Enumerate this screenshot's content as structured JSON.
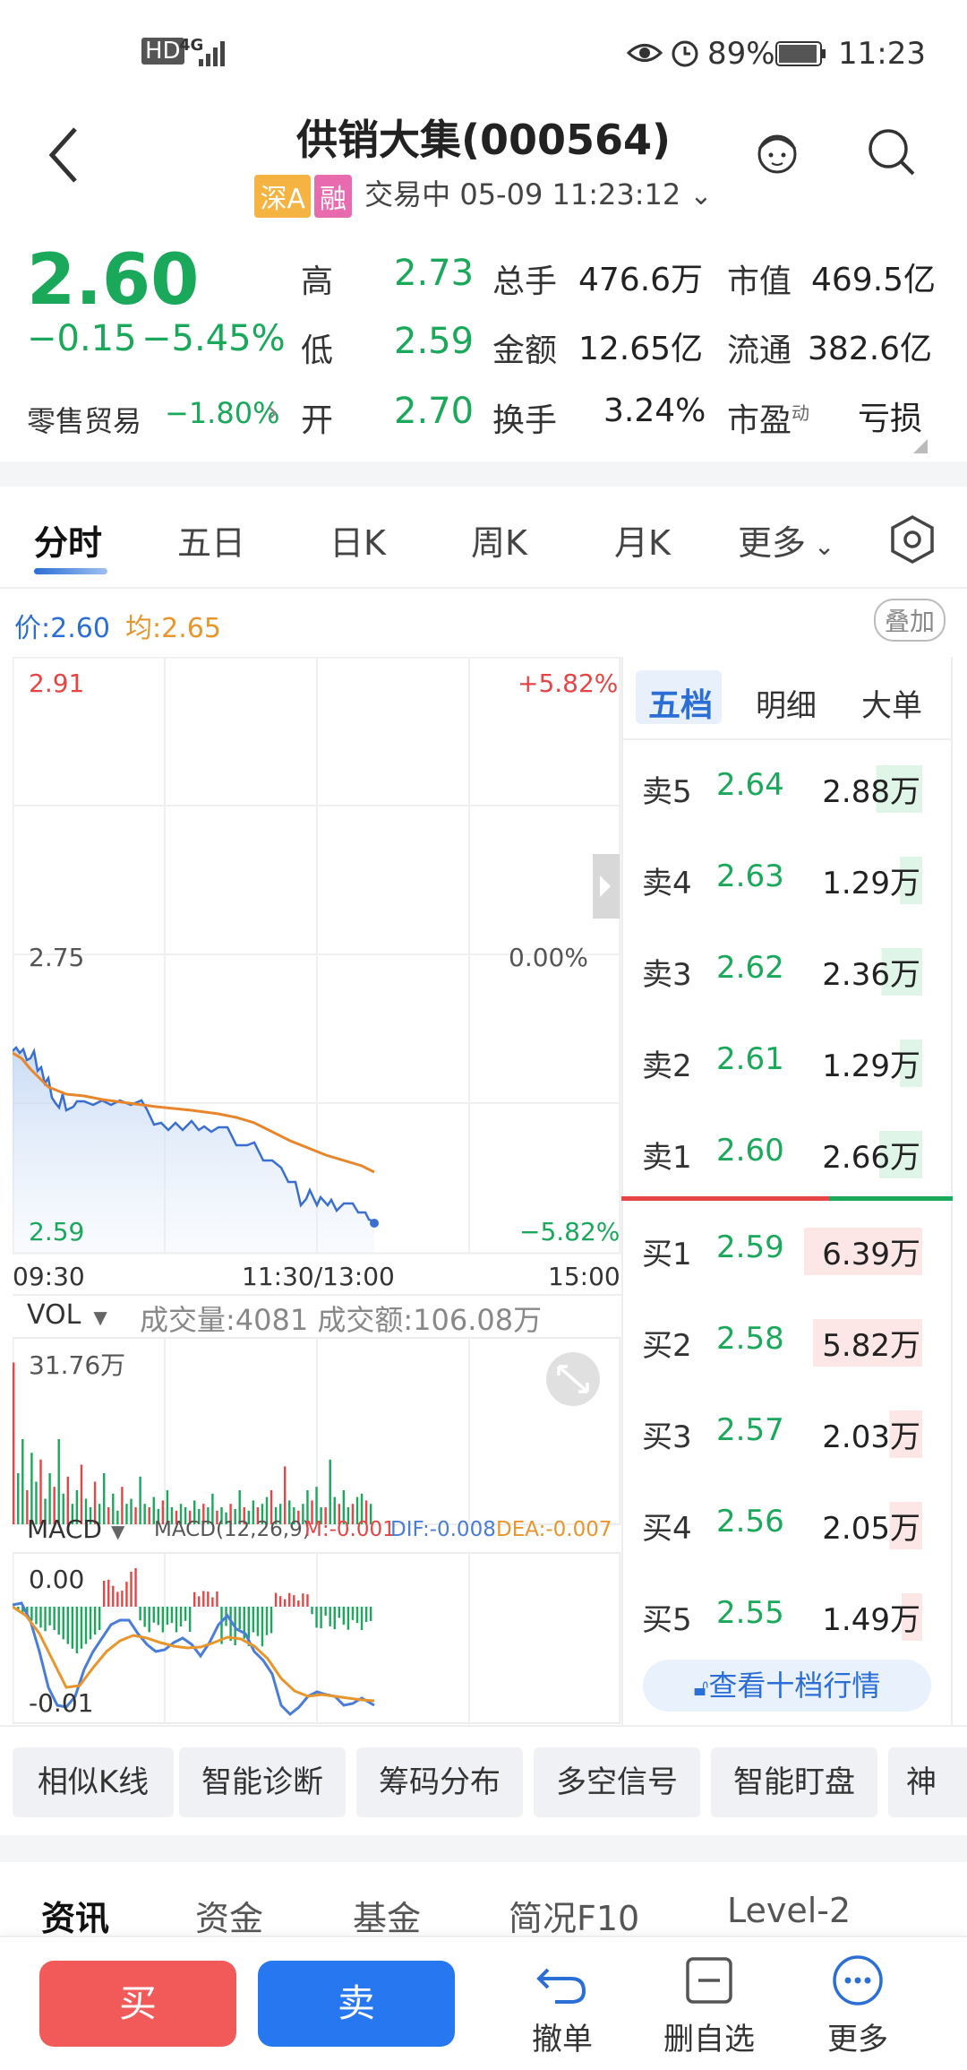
{
  "status_bar": {
    "hd": "HD",
    "net": "4G",
    "battery": "89%",
    "time": "11:23"
  },
  "header": {
    "title": "供销大集(000564)",
    "tag_market": "深A",
    "tag_margin": "融",
    "trading": "交易中 05-09 11:23:12"
  },
  "quote": {
    "price": "2.60",
    "change": "−0.15",
    "change_pct": "−5.45%",
    "sector": "零售贸易",
    "sector_pct": "−1.80%",
    "high_lbl": "高",
    "high": "2.73",
    "low_lbl": "低",
    "low": "2.59",
    "open_lbl": "开",
    "open": "2.70",
    "vol_lbl": "总手",
    "vol": "476.6万",
    "amt_lbl": "金额",
    "amt": "12.65亿",
    "turn_lbl": "换手",
    "turn": "3.24%",
    "mcap_lbl": "市值",
    "mcap": "469.5亿",
    "float_lbl": "流通",
    "float": "382.6亿",
    "pe_lbl": "市盈",
    "pe_sup": "动",
    "pe": "亏损"
  },
  "tabs": [
    "分时",
    "五日",
    "日K",
    "周K",
    "月K",
    "更多"
  ],
  "chart_legend": {
    "price_lbl": "价:",
    "price": "2.60",
    "avg_lbl": "均:",
    "avg": "2.65",
    "overlay": "叠加"
  },
  "chart_axes": {
    "top": "2.91",
    "mid": "2.75",
    "bottom": "2.59",
    "top_pct": "+5.82%",
    "mid_pct": "0.00%",
    "bottom_pct": "−5.82%",
    "t_start": "09:30",
    "t_mid": "11:30/13:00",
    "t_end": "15:00"
  },
  "vol_panel": {
    "label": "VOL",
    "info": "成交量:4081 成交额:106.08万",
    "max": "31.76万"
  },
  "macd_panel": {
    "label": "MACD",
    "params": "MACD(12,26,9)",
    "m": "M:-0.001",
    "dif": "DIF:-0.008",
    "dea": "DEA:-0.007",
    "zero": "0.00",
    "low": "-0.01"
  },
  "orderbook": {
    "tabs": [
      "五档",
      "明细",
      "大单"
    ],
    "asks": [
      {
        "label": "卖5",
        "price": "2.64",
        "vol": "2.88万"
      },
      {
        "label": "卖4",
        "price": "2.63",
        "vol": "1.29万"
      },
      {
        "label": "卖3",
        "price": "2.62",
        "vol": "2.36万"
      },
      {
        "label": "卖2",
        "price": "2.61",
        "vol": "1.29万"
      },
      {
        "label": "卖1",
        "price": "2.60",
        "vol": "2.66万"
      }
    ],
    "bids": [
      {
        "label": "买1",
        "price": "2.59",
        "vol": "6.39万"
      },
      {
        "label": "买2",
        "price": "2.58",
        "vol": "5.82万"
      },
      {
        "label": "买3",
        "price": "2.57",
        "vol": "2.03万"
      },
      {
        "label": "买4",
        "price": "2.56",
        "vol": "2.05万"
      },
      {
        "label": "买5",
        "price": "2.55",
        "vol": "1.49万"
      }
    ],
    "ten_level": "查看十档行情"
  },
  "tools": [
    "相似K线",
    "智能诊断",
    "筹码分布",
    "多空信号",
    "智能盯盘",
    "神"
  ],
  "news_tabs": [
    "资讯",
    "资金",
    "基金",
    "简况F10",
    "Level-2"
  ],
  "bottom": {
    "buy": "买",
    "sell": "卖",
    "cancel": "撤单",
    "remove": "删自选",
    "more": "更多"
  },
  "colors": {
    "up": "#e64545",
    "down": "#1aa85a",
    "price_line": "#3a6fd0",
    "avg_line": "#e8862c",
    "accent": "#2a6ed6"
  }
}
